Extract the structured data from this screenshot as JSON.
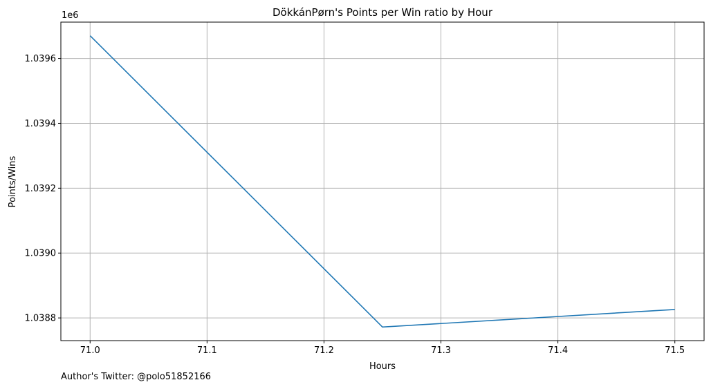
{
  "chart_data": {
    "type": "line",
    "title": "DökkánPørn's Points per Win ratio by Hour",
    "xlabel": "Hours",
    "ylabel": "Points/Wins",
    "y_offset_label": "1e6",
    "x": [
      71.0,
      71.25,
      71.5
    ],
    "series": [
      {
        "values": [
          1039670,
          1038772,
          1038826
        ]
      }
    ],
    "xlim": [
      70.975,
      71.525
    ],
    "ylim": [
      1038730,
      1039712
    ],
    "xticks": [
      71.0,
      71.1,
      71.2,
      71.3,
      71.4,
      71.5
    ],
    "xtick_labels": [
      "71.0",
      "71.1",
      "71.2",
      "71.3",
      "71.4",
      "71.5"
    ],
    "yticks": [
      1038800,
      1039000,
      1039200,
      1039400,
      1039600
    ],
    "ytick_labels": [
      "1.0388",
      "1.0390",
      "1.0392",
      "1.0394",
      "1.0396"
    ],
    "grid": true,
    "line_color": "#1f77b4",
    "grid_color": "#b0b0b0"
  },
  "footer": {
    "author": "Author's Twitter: @polo51852166"
  }
}
